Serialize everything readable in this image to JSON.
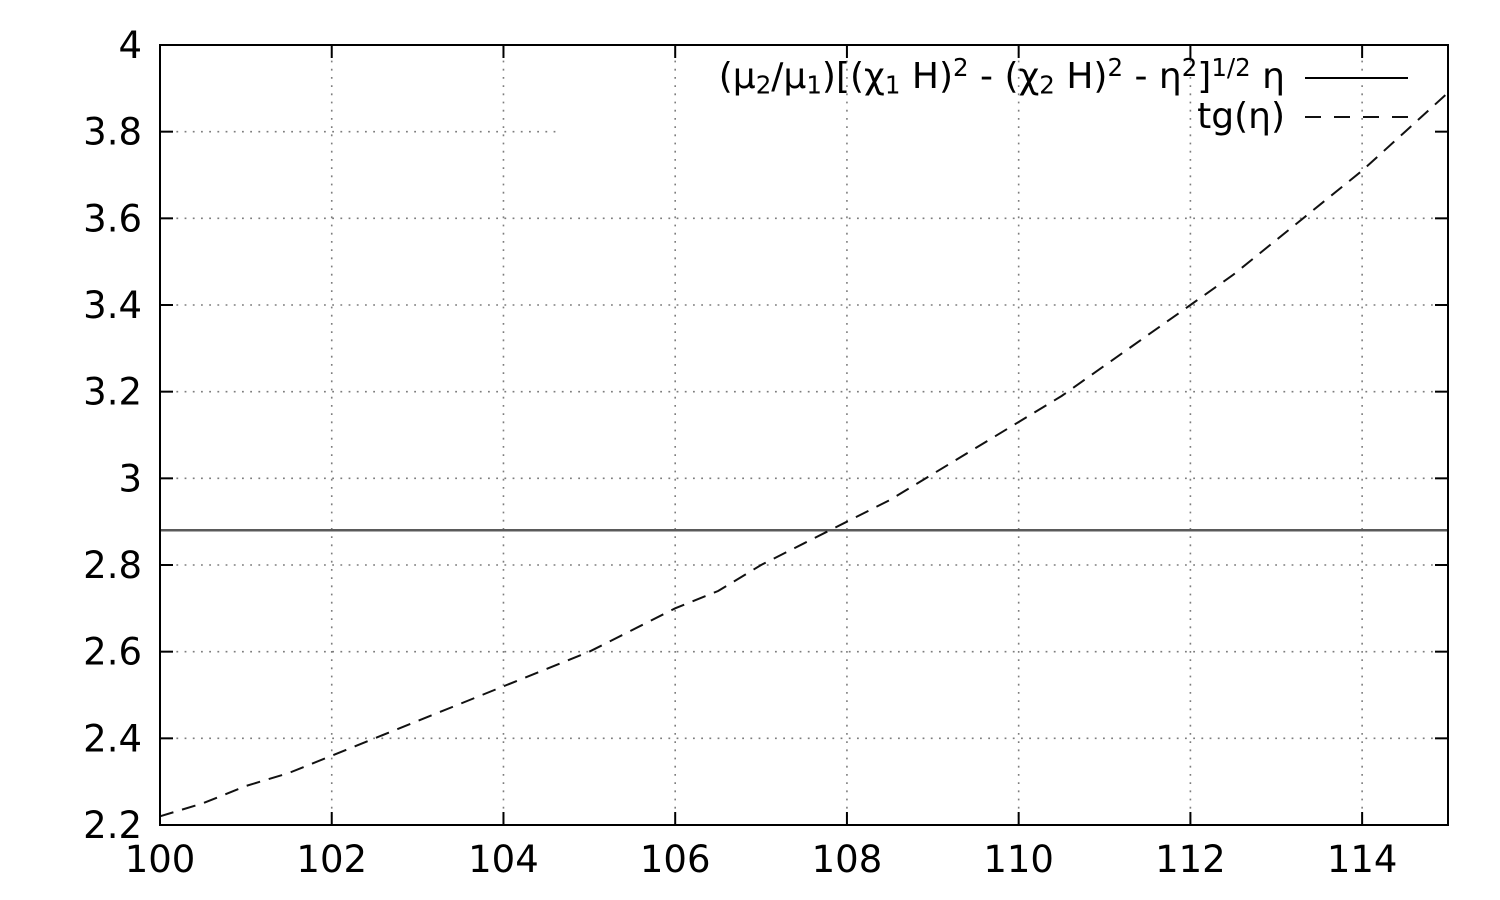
{
  "chart_data": {
    "type": "line",
    "title": "",
    "xlabel": "",
    "ylabel": "",
    "xlim": [
      100,
      115
    ],
    "ylim": [
      2.2,
      4.0
    ],
    "x_ticks": [
      100,
      102,
      104,
      106,
      108,
      110,
      112,
      114
    ],
    "x_tick_labels": [
      "100",
      "102",
      "104",
      "106",
      "108",
      "110",
      "112",
      "114"
    ],
    "y_ticks": [
      2.2,
      2.4,
      2.6,
      2.8,
      3.0,
      3.2,
      3.4,
      3.6,
      3.8,
      4.0
    ],
    "y_tick_labels": [
      "2.2",
      "2.4",
      "2.6",
      "2.8",
      "3",
      "3.2",
      "3.4",
      "3.6",
      "3.8",
      "4"
    ],
    "grid": true,
    "grid_style": "dotted",
    "tick_direction": "in",
    "mirrored_ticks": true,
    "legend_position": "top-right-inside",
    "partial_gridline": {
      "y": 3.8,
      "x_start": 100,
      "x_end": 104.65
    },
    "series": [
      {
        "name": "(mu2/mu1)[(chi1 H)^2 - (chi2 H)^2 - eta^2]^(1/2) eta",
        "line_style": "solid",
        "color": "#5a5a5a",
        "x": [
          100,
          115
        ],
        "y": [
          2.88,
          2.88
        ]
      },
      {
        "name": "tg(eta)",
        "line_style": "dashed",
        "color": "#111111",
        "x": [
          100,
          100.5,
          101,
          101.5,
          102,
          102.5,
          103,
          103.5,
          104,
          104.5,
          105,
          105.5,
          106,
          106.5,
          107,
          107.5,
          108,
          108.5,
          109,
          109.5,
          110,
          110.5,
          111,
          111.5,
          112,
          112.5,
          113,
          113.5,
          114,
          114.5,
          115
        ],
        "y": [
          2.22,
          2.25,
          2.29,
          2.32,
          2.36,
          2.4,
          2.44,
          2.48,
          2.52,
          2.56,
          2.6,
          2.65,
          2.7,
          2.74,
          2.8,
          2.85,
          2.9,
          2.95,
          3.01,
          3.07,
          3.13,
          3.19,
          3.26,
          3.33,
          3.4,
          3.47,
          3.55,
          3.63,
          3.71,
          3.8,
          3.89
        ]
      }
    ]
  },
  "legend": {
    "items": [
      {
        "label_plain": "(μ2/μ1)[(χ1 H)2 - (χ2 H)2 - η2]1/2 η",
        "sample": "solid",
        "segments": [
          {
            "t": "(μ"
          },
          {
            "t": "2",
            "s": "sub"
          },
          {
            "t": "/μ"
          },
          {
            "t": "1",
            "s": "sub"
          },
          {
            "t": ")[(χ"
          },
          {
            "t": "1",
            "s": "sub"
          },
          {
            "t": " H)"
          },
          {
            "t": "2",
            "s": "sup"
          },
          {
            "t": " - (χ"
          },
          {
            "t": "2",
            "s": "sub"
          },
          {
            "t": " H)"
          },
          {
            "t": "2",
            "s": "sup"
          },
          {
            "t": " - η"
          },
          {
            "t": "2",
            "s": "sup"
          },
          {
            "t": "]"
          },
          {
            "t": "1/2",
            "s": "sup"
          },
          {
            "t": " η"
          }
        ]
      },
      {
        "label_plain": "tg(η)",
        "sample": "dashed",
        "segments": [
          {
            "t": "tg(η)"
          }
        ]
      }
    ]
  },
  "colors": {
    "background": "#ffffff",
    "axis": "#000000",
    "grid": "#7d7d7d",
    "text": "#000000",
    "hline": "#5a5a5a",
    "curve": "#111111"
  }
}
